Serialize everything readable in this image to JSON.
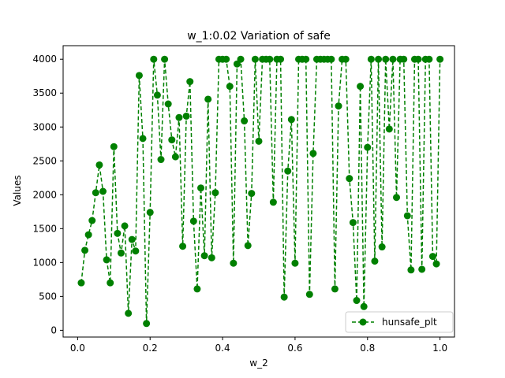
{
  "chart_data": {
    "type": "line",
    "title": "w_1:0.02 Variation of safe",
    "xlabel": "w_2",
    "ylabel": "Values",
    "xlim": [
      -0.04,
      1.04
    ],
    "ylim": [
      -100,
      4200
    ],
    "xticks": [
      0.0,
      0.2,
      0.4,
      0.6,
      0.8,
      1.0
    ],
    "xtick_labels": [
      "0.0",
      "0.2",
      "0.4",
      "0.6",
      "0.8",
      "1.0"
    ],
    "yticks": [
      0,
      500,
      1000,
      1500,
      2000,
      2500,
      3000,
      3500,
      4000
    ],
    "ytick_labels": [
      "0",
      "500",
      "1000",
      "1500",
      "2000",
      "2500",
      "3000",
      "3500",
      "4000"
    ],
    "grid": false,
    "legend_position": "lower-right",
    "series": [
      {
        "name": "hunsafe_plt",
        "color": "#008000",
        "line_style": "dashed",
        "marker": "circle",
        "x": [
          0.01,
          0.02,
          0.03,
          0.04,
          0.05,
          0.06,
          0.07,
          0.08,
          0.09,
          0.1,
          0.11,
          0.12,
          0.13,
          0.14,
          0.15,
          0.16,
          0.17,
          0.18,
          0.19,
          0.2,
          0.21,
          0.22,
          0.23,
          0.24,
          0.25,
          0.26,
          0.27,
          0.28,
          0.29,
          0.3,
          0.31,
          0.32,
          0.33,
          0.34,
          0.35,
          0.36,
          0.37,
          0.38,
          0.39,
          0.4,
          0.41,
          0.42,
          0.43,
          0.44,
          0.45,
          0.46,
          0.47,
          0.48,
          0.49,
          0.5,
          0.51,
          0.52,
          0.53,
          0.54,
          0.55,
          0.56,
          0.57,
          0.58,
          0.59,
          0.6,
          0.61,
          0.62,
          0.63,
          0.64,
          0.65,
          0.66,
          0.67,
          0.68,
          0.69,
          0.7,
          0.71,
          0.72,
          0.73,
          0.74,
          0.75,
          0.76,
          0.77,
          0.78,
          0.79,
          0.8,
          0.81,
          0.82,
          0.83,
          0.84,
          0.85,
          0.86,
          0.87,
          0.88,
          0.89,
          0.9,
          0.91,
          0.92,
          0.93,
          0.94,
          0.95,
          0.96,
          0.97,
          0.98,
          0.99,
          1.0
        ],
        "values": [
          700,
          1180,
          1410,
          1620,
          2030,
          2440,
          2050,
          1040,
          700,
          2710,
          1430,
          1140,
          1540,
          250,
          1340,
          1170,
          3760,
          2830,
          100,
          1740,
          4000,
          3470,
          2520,
          4000,
          3340,
          2810,
          2560,
          3140,
          1240,
          3160,
          3670,
          1610,
          610,
          2100,
          1100,
          3410,
          1070,
          2030,
          4000,
          4000,
          4000,
          3600,
          990,
          3930,
          4000,
          3090,
          1250,
          2020,
          4000,
          2790,
          4000,
          4000,
          4000,
          1890,
          4000,
          4000,
          490,
          2350,
          3110,
          990,
          4000,
          4000,
          4000,
          530,
          2610,
          4000,
          4000,
          4000,
          4000,
          4000,
          610,
          3310,
          4000,
          4000,
          2240,
          1590,
          440,
          3600,
          350,
          2700,
          4000,
          1020,
          4000,
          1230,
          4000,
          2970,
          4000,
          1960,
          4000,
          4000,
          1690,
          890,
          4000,
          4000,
          900,
          4000,
          4000,
          1090,
          980,
          4000
        ]
      }
    ]
  }
}
